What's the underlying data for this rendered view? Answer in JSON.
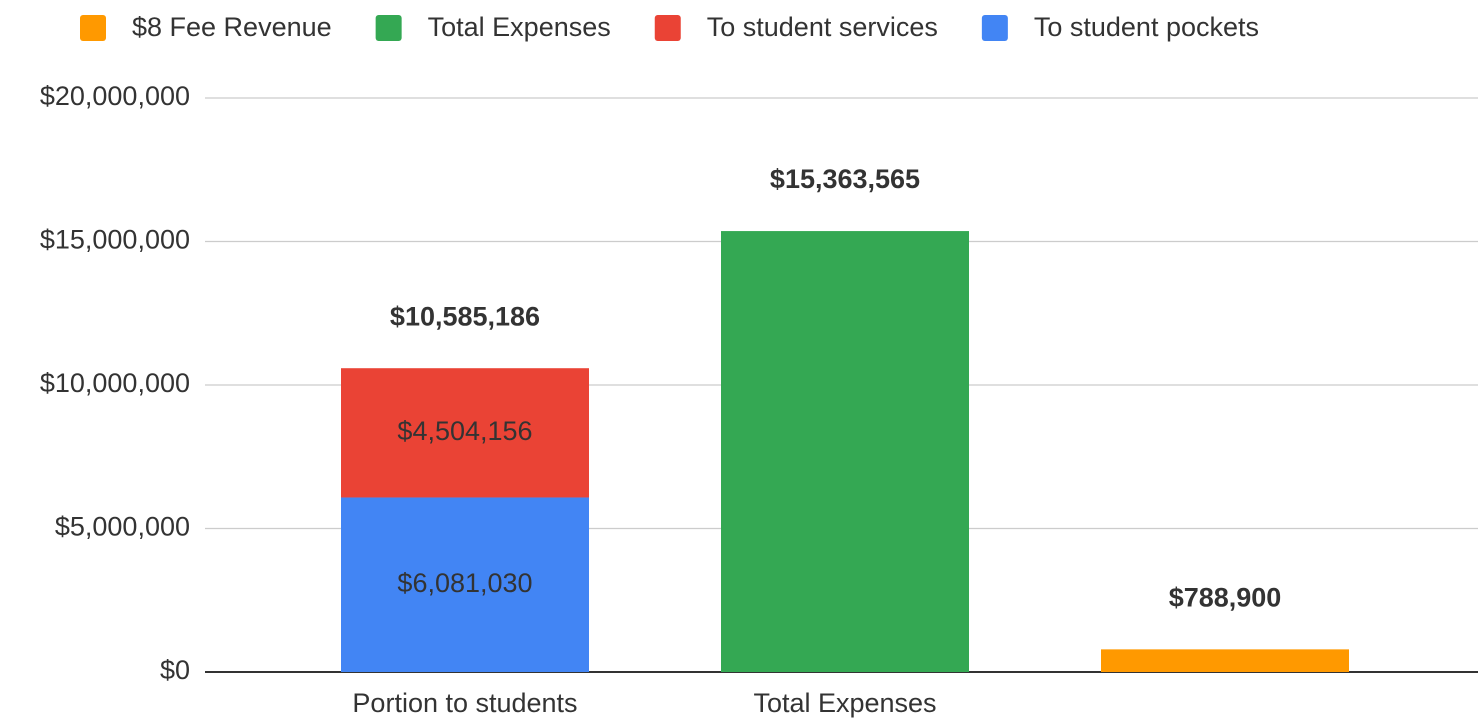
{
  "chart_data": {
    "type": "stacked_bar",
    "categories": [
      "Portion to students",
      "Total Expenses",
      null
    ],
    "series": [
      {
        "name": "$8 Fee Revenue",
        "color": "#ff9900",
        "values": [
          null,
          null,
          788900
        ]
      },
      {
        "name": "Total Expenses",
        "color": "#34a853",
        "values": [
          null,
          15363565,
          null
        ]
      },
      {
        "name": "To student services",
        "color": "#ea4335",
        "values": [
          4504156,
          null,
          null
        ],
        "value_labels": [
          "$4,504,156",
          null,
          null
        ]
      },
      {
        "name": "To student pockets",
        "color": "#4285f4",
        "values": [
          6081030,
          null,
          null
        ],
        "value_labels": [
          "$6,081,030",
          null,
          null
        ]
      }
    ],
    "stack_order": [
      3,
      2,
      1,
      0
    ],
    "total_labels": [
      "$10,585,186",
      "$15,363,565",
      "$788,900"
    ],
    "ylim": [
      0,
      20000000
    ],
    "yticks": [
      {
        "value": 0,
        "label": "$0"
      },
      {
        "value": 5000000,
        "label": "$5,000,000"
      },
      {
        "value": 10000000,
        "label": "$10,000,000"
      },
      {
        "value": 15000000,
        "label": "$15,000,000"
      },
      {
        "value": 20000000,
        "label": "$20,000,000"
      }
    ],
    "grid": true,
    "legend": "top"
  }
}
